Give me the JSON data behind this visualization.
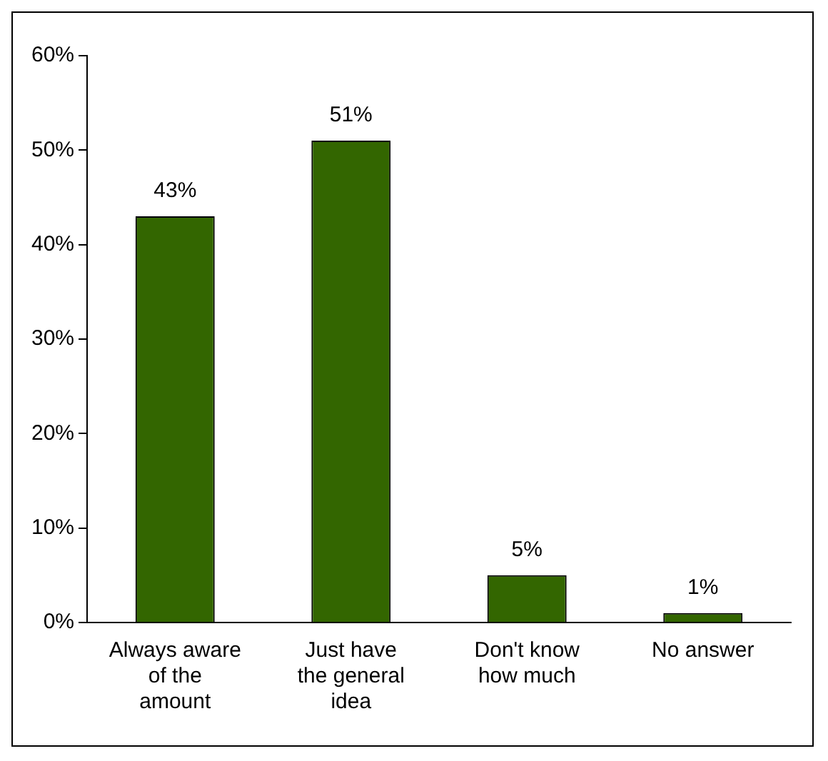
{
  "chart_data": {
    "type": "bar",
    "categories": [
      "Always aware of the amount",
      "Just have the general idea",
      "Don't know how much",
      "No answer"
    ],
    "values": [
      43,
      51,
      5,
      1
    ],
    "value_labels": [
      "43%",
      "51%",
      "5%",
      "1%"
    ],
    "color": "#336600",
    "grid": false,
    "legend": false,
    "ylim": [
      0,
      60
    ],
    "yticks": [
      {
        "value": 0,
        "label": "0%"
      },
      {
        "value": 10,
        "label": "10%"
      },
      {
        "value": 20,
        "label": "20%"
      },
      {
        "value": 30,
        "label": "30%"
      },
      {
        "value": 40,
        "label": "40%"
      },
      {
        "value": 50,
        "label": "50%"
      },
      {
        "value": 60,
        "label": "60%"
      }
    ]
  }
}
